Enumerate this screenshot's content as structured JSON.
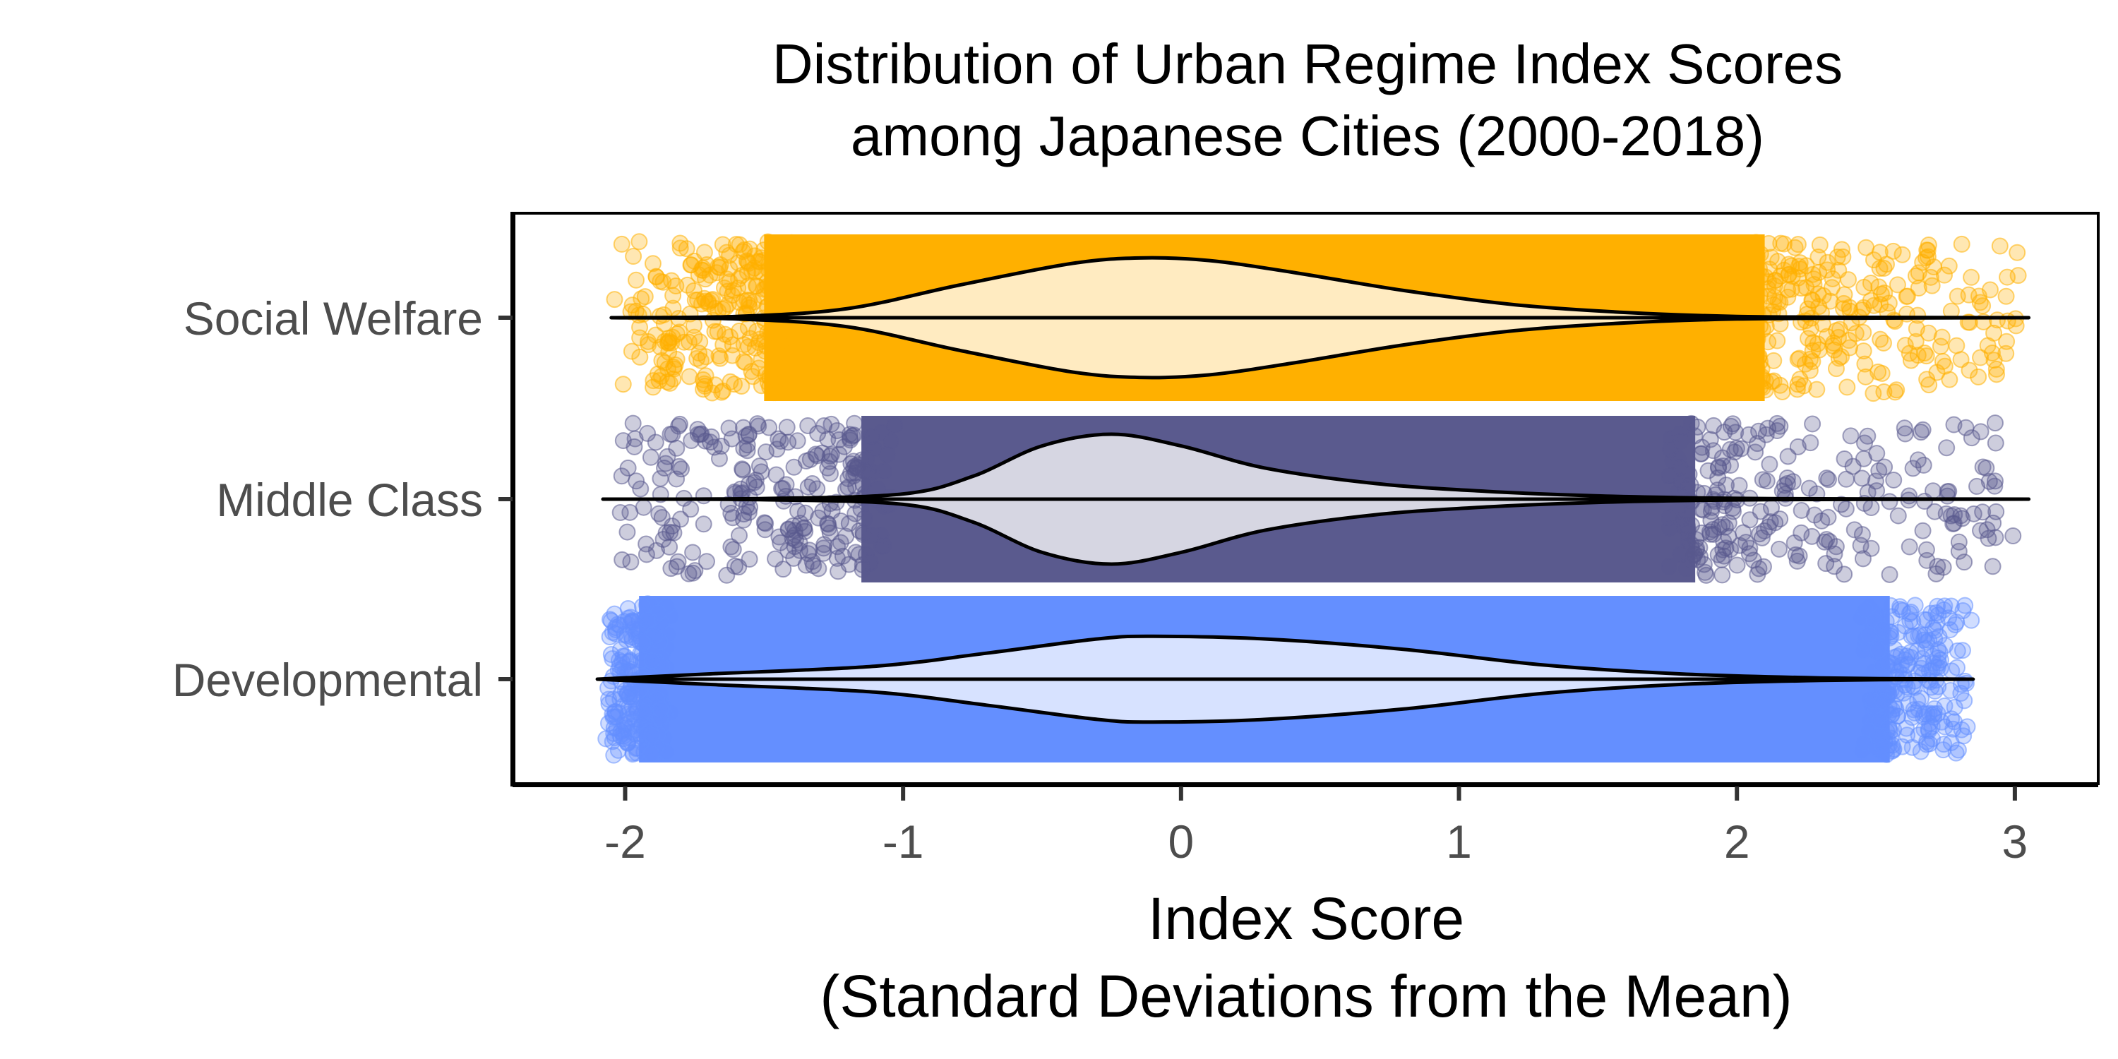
{
  "chart_data": {
    "type": "violin",
    "title_lines": [
      "Distribution of Urban Regime Index Scores",
      "among Japanese Cities (2000-2018)"
    ],
    "xlabel_lines": [
      "Index Score",
      "(Standard Deviations from the Mean)"
    ],
    "ylabel": "",
    "xlim": [
      -2.4,
      3.3
    ],
    "xticks": [
      -2,
      -1,
      0,
      1,
      2,
      3
    ],
    "xtick_labels": [
      "-2",
      "-1",
      "0",
      "1",
      "2",
      "3"
    ],
    "grid": false,
    "legend": "none",
    "point_alpha": 0.3,
    "categories": [
      "Social Welfare",
      "Middle Class",
      "Developmental"
    ],
    "series": [
      {
        "name": "Social Welfare",
        "color": "#FFB000",
        "fill": "#FFEBC1",
        "min": -2.05,
        "max": 3.05,
        "dense_range": [
          -1.5,
          2.1
        ],
        "density": [
          {
            "x": -2.05,
            "h": 0.0
          },
          {
            "x": -1.6,
            "h": 0.02
          },
          {
            "x": -1.2,
            "h": 0.14
          },
          {
            "x": -0.8,
            "h": 0.5
          },
          {
            "x": -0.4,
            "h": 0.83
          },
          {
            "x": -0.15,
            "h": 0.92
          },
          {
            "x": 0.1,
            "h": 0.88
          },
          {
            "x": 0.4,
            "h": 0.7
          },
          {
            "x": 0.8,
            "h": 0.42
          },
          {
            "x": 1.2,
            "h": 0.2
          },
          {
            "x": 1.6,
            "h": 0.08
          },
          {
            "x": 2.0,
            "h": 0.02
          },
          {
            "x": 2.5,
            "h": 0.005
          },
          {
            "x": 3.05,
            "h": 0.0
          }
        ]
      },
      {
        "name": "Middle Class",
        "color": "#5A5A8E",
        "fill": "#D6D6E2",
        "min": -2.08,
        "max": 3.05,
        "dense_range": [
          -1.15,
          1.85
        ],
        "density": [
          {
            "x": -2.08,
            "h": 0.0
          },
          {
            "x": -1.5,
            "h": 0.01
          },
          {
            "x": -1.0,
            "h": 0.08
          },
          {
            "x": -0.75,
            "h": 0.35
          },
          {
            "x": -0.5,
            "h": 0.82
          },
          {
            "x": -0.25,
            "h": 1.0
          },
          {
            "x": 0.0,
            "h": 0.82
          },
          {
            "x": 0.3,
            "h": 0.48
          },
          {
            "x": 0.7,
            "h": 0.24
          },
          {
            "x": 1.1,
            "h": 0.12
          },
          {
            "x": 1.5,
            "h": 0.05
          },
          {
            "x": 2.0,
            "h": 0.012
          },
          {
            "x": 2.5,
            "h": 0.003
          },
          {
            "x": 3.05,
            "h": 0.0
          }
        ]
      },
      {
        "name": "Developmental",
        "color": "#648FFF",
        "fill": "#D7E2FF",
        "min": -2.1,
        "max": 2.85,
        "dense_range": [
          -1.95,
          2.55
        ],
        "density": [
          {
            "x": -2.1,
            "h": 0.0
          },
          {
            "x": -1.7,
            "h": 0.08
          },
          {
            "x": -1.1,
            "h": 0.2
          },
          {
            "x": -0.7,
            "h": 0.4
          },
          {
            "x": -0.3,
            "h": 0.62
          },
          {
            "x": -0.1,
            "h": 0.66
          },
          {
            "x": 0.3,
            "h": 0.62
          },
          {
            "x": 0.8,
            "h": 0.46
          },
          {
            "x": 1.3,
            "h": 0.22
          },
          {
            "x": 1.8,
            "h": 0.08
          },
          {
            "x": 2.3,
            "h": 0.02
          },
          {
            "x": 2.85,
            "h": 0.0
          }
        ]
      }
    ]
  }
}
